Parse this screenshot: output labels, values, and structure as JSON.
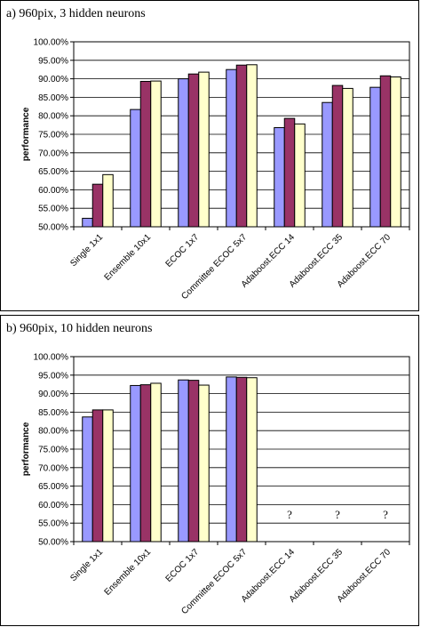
{
  "chart_data": [
    {
      "type": "bar",
      "title": "a) 960pix, 3 hidden neurons",
      "ylabel": "performance",
      "xlabel": "",
      "ylim": [
        0.5,
        1.0
      ],
      "yticks": [
        "50.00%",
        "55.00%",
        "60.00%",
        "65.00%",
        "70.00%",
        "75.00%",
        "80.00%",
        "85.00%",
        "90.00%",
        "95.00%",
        "100.00%"
      ],
      "grid": true,
      "categories": [
        "Single 1x1",
        "Ensemble 10x1",
        "ECOC 1x7",
        "Committee ECOC 5x7",
        "Adaboost.ECC 14",
        "Adaboost.ECC 35",
        "Adaboost.ECC 70"
      ],
      "series": [
        {
          "color": "#9999ff",
          "values": [
            0.523,
            0.817,
            0.9,
            0.925,
            0.768,
            0.836,
            0.877
          ]
        },
        {
          "color": "#993366",
          "values": [
            0.615,
            0.893,
            0.913,
            0.937,
            0.793,
            0.882,
            0.908
          ]
        },
        {
          "color": "#ffffcc",
          "values": [
            0.641,
            0.894,
            0.918,
            0.938,
            0.778,
            0.874,
            0.905
          ]
        }
      ],
      "annotations": []
    },
    {
      "type": "bar",
      "title": "b) 960pix, 10 hidden neurons",
      "ylabel": "performance",
      "xlabel": "",
      "ylim": [
        0.5,
        1.0
      ],
      "yticks": [
        "50.00%",
        "55.00%",
        "60.00%",
        "65.00%",
        "70.00%",
        "75.00%",
        "80.00%",
        "85.00%",
        "90.00%",
        "95.00%",
        "100.00%"
      ],
      "grid": true,
      "categories": [
        "Single 1x1",
        "Ensemble 10x1",
        "ECOC 1x7",
        "Committee ECOC 5x7",
        "Adaboost.ECC 14",
        "Adaboost.ECC 35",
        "Adaboost.ECC 70"
      ],
      "series": [
        {
          "color": "#9999ff",
          "values": [
            0.837,
            0.922,
            0.937,
            0.945,
            null,
            null,
            null
          ]
        },
        {
          "color": "#993366",
          "values": [
            0.856,
            0.924,
            0.936,
            0.944,
            null,
            null,
            null
          ]
        },
        {
          "color": "#ffffcc",
          "values": [
            0.856,
            0.928,
            0.923,
            0.943,
            null,
            null,
            null
          ]
        }
      ],
      "annotations": [
        {
          "category": "Adaboost.ECC 14",
          "text": "?"
        },
        {
          "category": "Adaboost.ECC 35",
          "text": "?"
        },
        {
          "category": "Adaboost.ECC 70",
          "text": "?"
        }
      ]
    }
  ]
}
